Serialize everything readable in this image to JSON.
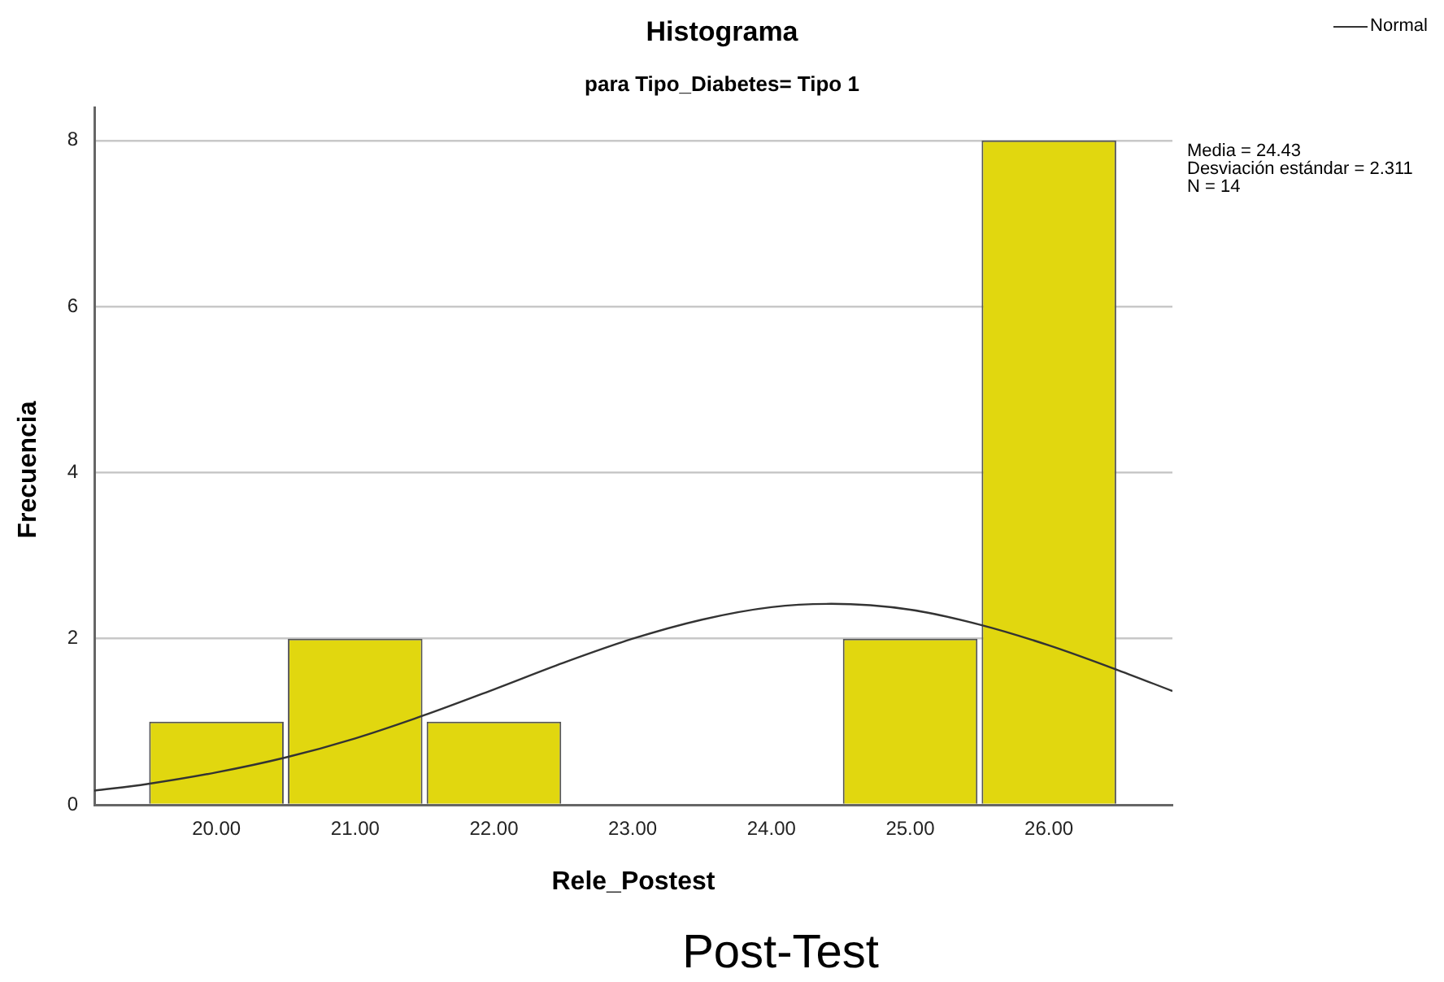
{
  "chart_data": {
    "type": "histogram",
    "title": "Histograma",
    "subtitle": "para Tipo_Diabetes= Tipo 1",
    "xlabel": "Rele_Postest",
    "ylabel": "Frecuencia",
    "bins": [
      19.5,
      20.5,
      21.5,
      22.5,
      23.5,
      24.5,
      25.5,
      26.5
    ],
    "values": [
      1,
      2,
      1,
      0,
      0,
      2,
      8
    ],
    "color": "#e1d70f",
    "series": [
      {
        "name": "Normal",
        "type": "line",
        "color": "#333333",
        "x": [
          19.12,
          19.5,
          20,
          20.5,
          21,
          21.5,
          22,
          22.5,
          23,
          23.5,
          24,
          24.43,
          25,
          25.5,
          26,
          26.5,
          26.89
        ],
        "values": [
          0.17,
          0.25,
          0.39,
          0.57,
          0.8,
          1.08,
          1.39,
          1.71,
          2.0,
          2.23,
          2.38,
          2.42,
          2.35,
          2.17,
          1.92,
          1.62,
          1.37
        ]
      }
    ],
    "xlim": [
      19.12,
      26.89
    ],
    "xticks": [
      {
        "value": 20,
        "label": "20.00"
      },
      {
        "value": 21,
        "label": "21.00"
      },
      {
        "value": 22,
        "label": "22.00"
      },
      {
        "value": 23,
        "label": "23.00"
      },
      {
        "value": 24,
        "label": "24.00"
      },
      {
        "value": 25,
        "label": "25.00"
      },
      {
        "value": 26,
        "label": "26.00"
      }
    ],
    "ylim": [
      0,
      8.4
    ],
    "yticks": [
      0,
      2,
      4,
      6,
      8
    ],
    "grid": "y",
    "legend": "top right",
    "marker": "none",
    "annotations": [
      "Media = 24.43",
      "Desviación estándar = 2.311",
      "N = 14",
      "Post-Test"
    ]
  }
}
